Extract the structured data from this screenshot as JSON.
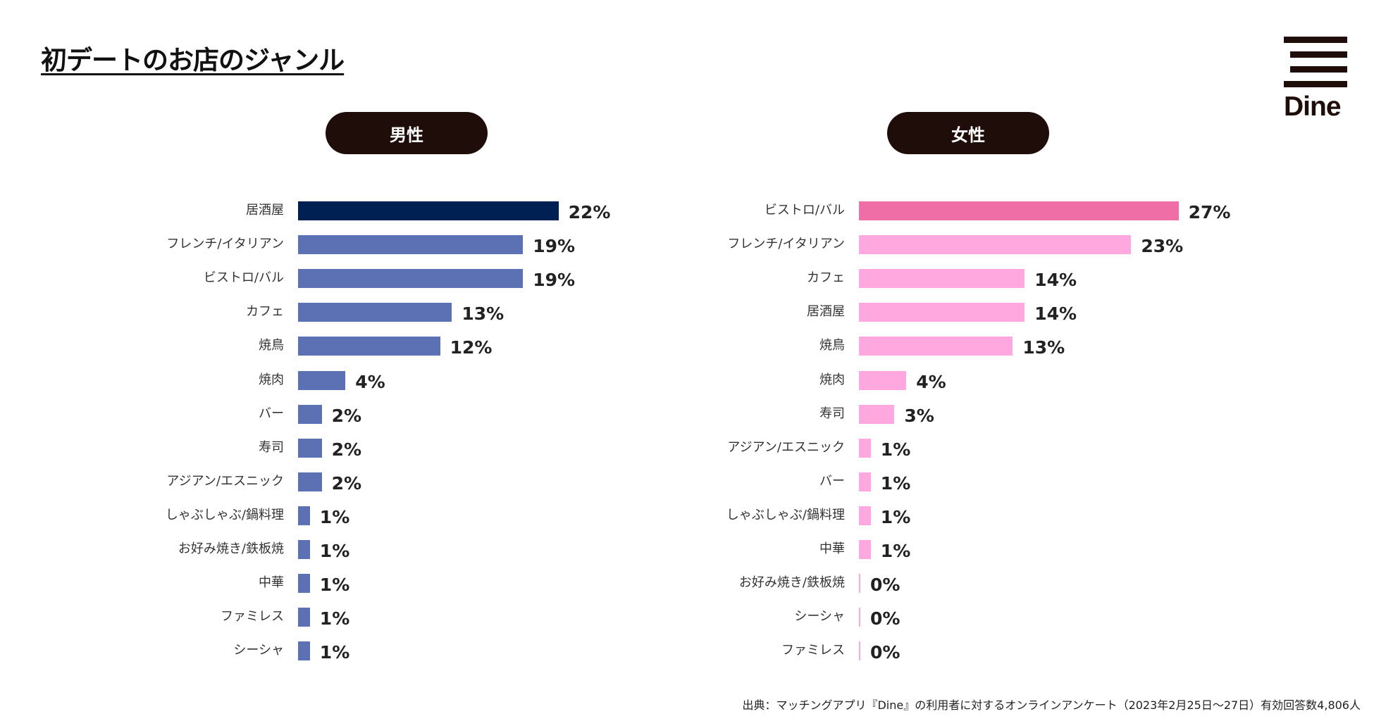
{
  "title": "初デートのお店のジャンル",
  "logo": "Dine",
  "footnote": "出典：マッチングアプリ『Dine』の利用者に対するオンラインアンケート（2023年2月25日〜27日）有効回答数4,806人",
  "chart_data": [
    {
      "type": "bar",
      "orientation": "horizontal",
      "title": "男性",
      "unit": "%",
      "highlight_color": "#002053",
      "color": "#5b71b3",
      "categories": [
        "居酒屋",
        "フレンチ/イタリアン",
        "ビストロ/バル",
        "カフェ",
        "焼鳥",
        "焼肉",
        "バー",
        "寿司",
        "アジアン/エスニック",
        "しゃぶしゃぶ/鍋料理",
        "お好み焼き/鉄板焼",
        "中華",
        "ファミレス",
        "シーシャ"
      ],
      "values": [
        22,
        19,
        19,
        13,
        12,
        4,
        2,
        2,
        2,
        1,
        1,
        1,
        1,
        1
      ],
      "labels": [
        "22%",
        "19%",
        "19%",
        "13%",
        "12%",
        "4%",
        "2%",
        "2%",
        "2%",
        "1%",
        "1%",
        "1%",
        "1%",
        "1%"
      ]
    },
    {
      "type": "bar",
      "orientation": "horizontal",
      "title": "女性",
      "unit": "%",
      "highlight_color": "#f06ea6",
      "color": "#ffa8e0",
      "categories": [
        "ビストロ/バル",
        "フレンチ/イタリアン",
        "カフェ",
        "居酒屋",
        "焼鳥",
        "焼肉",
        "寿司",
        "アジアン/エスニック",
        "バー",
        "しゃぶしゃぶ/鍋料理",
        "中華",
        "お好み焼き/鉄板焼",
        "シーシャ",
        "ファミレス"
      ],
      "values": [
        27,
        23,
        14,
        14,
        13,
        4,
        3,
        1,
        1,
        1,
        1,
        0,
        0,
        0
      ],
      "labels": [
        "27%",
        "23%",
        "14%",
        "14%",
        "13%",
        "4%",
        "3%",
        "1%",
        "1%",
        "1%",
        "1%",
        "0%",
        "0%",
        "0%"
      ]
    }
  ]
}
